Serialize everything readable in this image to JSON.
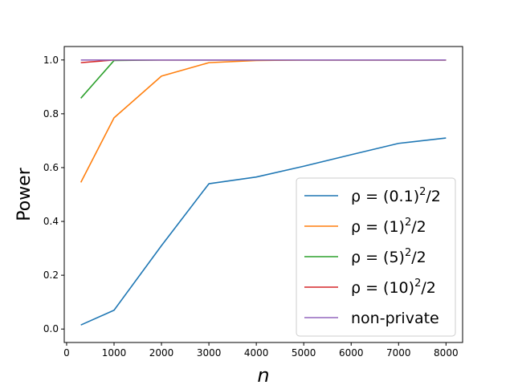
{
  "chart_data": {
    "type": "line",
    "title": "",
    "xlabel": "n",
    "ylabel": "Power",
    "xlim": [
      -50,
      8350
    ],
    "ylim": [
      -0.05,
      1.05
    ],
    "x_ticks": [
      0,
      1000,
      2000,
      3000,
      4000,
      5000,
      6000,
      7000,
      8000
    ],
    "y_ticks": [
      0.0,
      0.2,
      0.4,
      0.6,
      0.8,
      1.0
    ],
    "x_tick_labels": [
      "0",
      "1000",
      "2000",
      "3000",
      "4000",
      "5000",
      "6000",
      "7000",
      "8000"
    ],
    "y_tick_labels": [
      "0.0",
      "0.2",
      "0.4",
      "0.6",
      "0.8",
      "1.0"
    ],
    "grid": false,
    "legend_position": "lower-right",
    "series": [
      {
        "name": "ρ = (0.1)²/2",
        "legend": {
          "base": "ρ = (0.1)",
          "sup": "2",
          "tail": "/2"
        },
        "color": "#1f77b4",
        "x": [
          300,
          1000,
          2000,
          3000,
          4000,
          5000,
          6000,
          7000,
          8000
        ],
        "y": [
          0.015,
          0.07,
          0.31,
          0.54,
          0.565,
          0.605,
          0.648,
          0.69,
          0.71
        ]
      },
      {
        "name": "ρ = (1)²/2",
        "legend": {
          "base": "ρ = (1)",
          "sup": "2",
          "tail": "/2"
        },
        "color": "#ff7f0e",
        "x": [
          300,
          1000,
          2000,
          3000,
          4000,
          5000,
          6000,
          7000,
          8000
        ],
        "y": [
          0.545,
          0.785,
          0.94,
          0.99,
          0.998,
          1.0,
          1.0,
          1.0,
          1.0
        ]
      },
      {
        "name": "ρ = (5)²/2",
        "legend": {
          "base": "ρ = (5)",
          "sup": "2",
          "tail": "/2"
        },
        "color": "#2ca02c",
        "x": [
          300,
          1000,
          2000,
          3000,
          4000,
          5000,
          6000,
          7000,
          8000
        ],
        "y": [
          0.858,
          0.998,
          1.0,
          1.0,
          1.0,
          1.0,
          1.0,
          1.0,
          1.0
        ]
      },
      {
        "name": "ρ = (10)²/2",
        "legend": {
          "base": "ρ = (10)",
          "sup": "2",
          "tail": "/2"
        },
        "color": "#d62728",
        "x": [
          300,
          1000,
          2000,
          3000,
          4000,
          5000,
          6000,
          7000,
          8000
        ],
        "y": [
          0.99,
          1.0,
          1.0,
          1.0,
          1.0,
          1.0,
          1.0,
          1.0,
          1.0
        ]
      },
      {
        "name": "non-private",
        "legend": {
          "base": "non-private",
          "sup": "",
          "tail": ""
        },
        "color": "#9467bd",
        "x": [
          300,
          1000,
          2000,
          3000,
          4000,
          5000,
          6000,
          7000,
          8000
        ],
        "y": [
          1.0,
          1.0,
          1.0,
          1.0,
          1.0,
          1.0,
          1.0,
          1.0,
          1.0
        ]
      }
    ]
  }
}
